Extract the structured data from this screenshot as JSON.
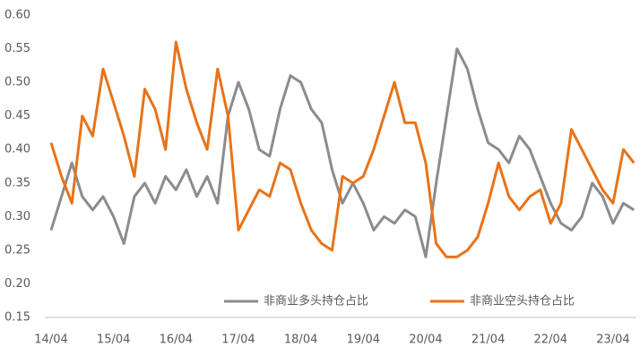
{
  "chart_data": {
    "type": "line",
    "categories": [
      "14/04",
      null,
      null,
      null,
      null,
      null,
      "15/04",
      null,
      null,
      null,
      null,
      null,
      "16/04",
      null,
      null,
      null,
      null,
      null,
      "17/04",
      null,
      null,
      null,
      null,
      null,
      "18/04",
      null,
      null,
      null,
      null,
      null,
      "19/04",
      null,
      null,
      null,
      null,
      null,
      "20/04",
      null,
      null,
      null,
      null,
      null,
      "21/04",
      null,
      null,
      null,
      null,
      null,
      "22/04",
      null,
      null,
      null,
      null,
      null,
      "23/04",
      null,
      null
    ],
    "series": [
      {
        "name": "非商业多头持仓占比",
        "color": "#8c8c8c",
        "values": [
          0.28,
          0.33,
          0.38,
          0.33,
          0.31,
          0.33,
          0.3,
          0.26,
          0.33,
          0.35,
          0.32,
          0.36,
          0.34,
          0.37,
          0.33,
          0.36,
          0.32,
          0.45,
          0.5,
          0.46,
          0.4,
          0.39,
          0.46,
          0.51,
          0.5,
          0.46,
          0.44,
          0.37,
          0.32,
          0.35,
          0.32,
          0.28,
          0.3,
          0.29,
          0.31,
          0.3,
          0.24,
          0.35,
          0.45,
          0.55,
          0.52,
          0.46,
          0.41,
          0.4,
          0.38,
          0.42,
          0.4,
          0.36,
          0.32,
          0.29,
          0.28,
          0.3,
          0.35,
          0.33,
          0.29,
          0.32,
          0.31
        ]
      },
      {
        "name": "非商业空头持仓占比",
        "color": "#e8731a",
        "values": [
          0.41,
          0.36,
          0.32,
          0.45,
          0.42,
          0.52,
          0.47,
          0.42,
          0.36,
          0.49,
          0.46,
          0.4,
          0.56,
          0.49,
          0.44,
          0.4,
          0.52,
          0.45,
          0.28,
          0.31,
          0.34,
          0.33,
          0.38,
          0.37,
          0.32,
          0.28,
          0.26,
          0.25,
          0.36,
          0.35,
          0.36,
          0.4,
          0.45,
          0.5,
          0.44,
          0.44,
          0.38,
          0.26,
          0.24,
          0.24,
          0.25,
          0.27,
          0.32,
          0.38,
          0.33,
          0.31,
          0.33,
          0.34,
          0.29,
          0.32,
          0.43,
          0.4,
          0.37,
          0.34,
          0.32,
          0.4,
          0.38
        ]
      }
    ],
    "ylim": [
      0.15,
      0.6
    ],
    "yticks": [
      0.15,
      {
        "value": 0.2,
        "label": "0.20"
      },
      0.25,
      {
        "value": 0.3,
        "label": "0.30"
      },
      0.35,
      {
        "value": 0.4,
        "label": "0.40"
      },
      0.45,
      {
        "value": 0.5,
        "label": "0.50"
      },
      0.55,
      {
        "value": 0.6,
        "label": "0.60"
      }
    ],
    "grid": false,
    "legend": "bottom"
  }
}
